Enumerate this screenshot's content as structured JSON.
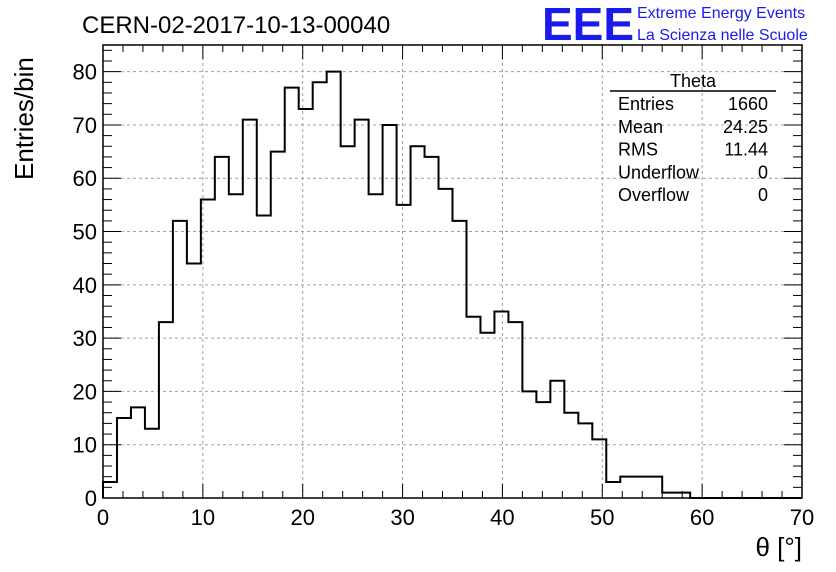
{
  "header": {
    "run_title": "CERN-02-2017-10-13-00040",
    "logo": "EEE",
    "logo_line1": "Extreme Energy Events",
    "logo_line2": "La Scienza nelle Scuole"
  },
  "stats": {
    "title": "Theta",
    "rows": [
      {
        "label": "Entries",
        "value": "1660"
      },
      {
        "label": "Mean",
        "value": "24.25"
      },
      {
        "label": "RMS",
        "value": "11.44"
      },
      {
        "label": "Underflow",
        "value": "0"
      },
      {
        "label": "Overflow",
        "value": "0"
      }
    ]
  },
  "chart_data": {
    "type": "bar",
    "histogram": "step",
    "xlabel": "θ [°]",
    "ylabel": "Entries/bin",
    "xlim": [
      0,
      70
    ],
    "ylim": [
      0,
      85
    ],
    "xticks": [
      0,
      10,
      20,
      30,
      40,
      50,
      60,
      70
    ],
    "yticks": [
      0,
      10,
      20,
      30,
      40,
      50,
      60,
      70,
      80
    ],
    "grid": true,
    "line_color": "#000000",
    "bin_width": 1.4,
    "bin_edges_start": 0,
    "values": [
      3,
      15,
      17,
      13,
      33,
      52,
      44,
      56,
      64,
      57,
      71,
      53,
      65,
      77,
      73,
      78,
      80,
      66,
      71,
      57,
      70,
      55,
      66,
      64,
      58,
      52,
      34,
      31,
      35,
      33,
      20,
      18,
      22,
      16,
      14,
      11,
      3,
      4,
      4,
      4,
      1,
      1,
      0,
      0,
      0,
      0,
      0,
      0,
      0,
      0
    ]
  }
}
